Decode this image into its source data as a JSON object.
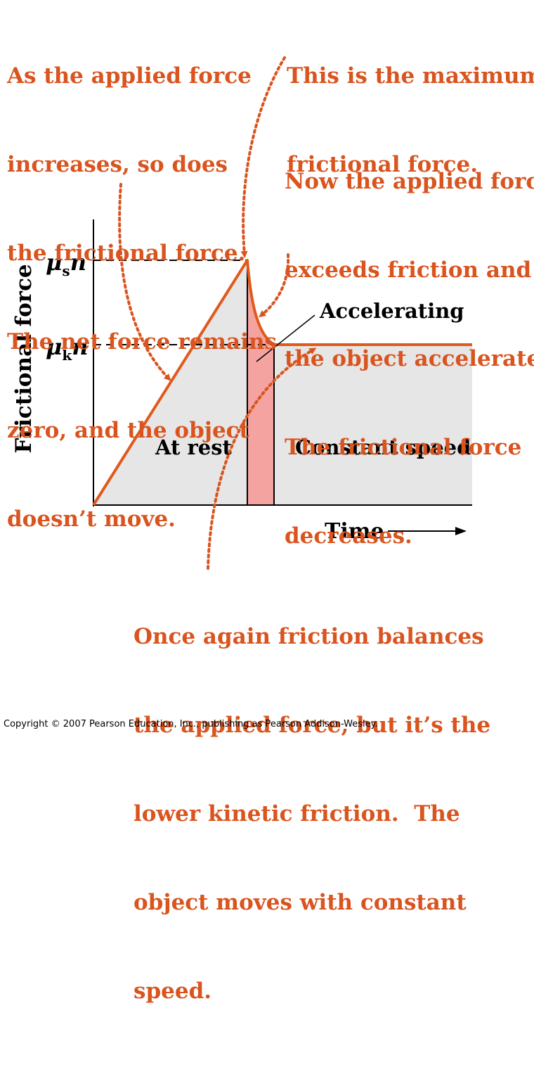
{
  "annotations": {
    "top_left": [
      "As the applied force",
      "increases, so does",
      "the frictional force.",
      "The net force remains",
      "zero, and the object",
      "doesn’t move."
    ],
    "top_right": [
      "This is the maximum",
      "frictional force."
    ],
    "middle_right": [
      "Now the applied force",
      "exceeds friction and",
      "the object accelerates.",
      "The frictional force",
      "decreases."
    ],
    "bottom": [
      "Once again friction balances",
      "the applied force, but it’s the",
      "lower kinetic friction.  The",
      "object moves with constant",
      "speed."
    ]
  },
  "graph": {
    "y_axis_label": "Frictional force",
    "x_axis_label": "Time",
    "y_ticks": [
      {
        "symbol": "μ",
        "subscript": "s",
        "suffix": "n"
      },
      {
        "symbol": "μ",
        "subscript": "k",
        "suffix": "n"
      }
    ],
    "regions": {
      "at_rest": "At rest",
      "accelerating": "Accelerating",
      "constant_speed": "Constant speed"
    }
  },
  "colors": {
    "annotation": "#d9541e",
    "curve": "#e05a1c",
    "fill_gray": "#e6e6e6",
    "fill_pink": "#f4a3a0"
  },
  "copyright": "Copyright © 2007 Pearson Education, Inc., publishing as Pearson Addison-Wesley."
}
